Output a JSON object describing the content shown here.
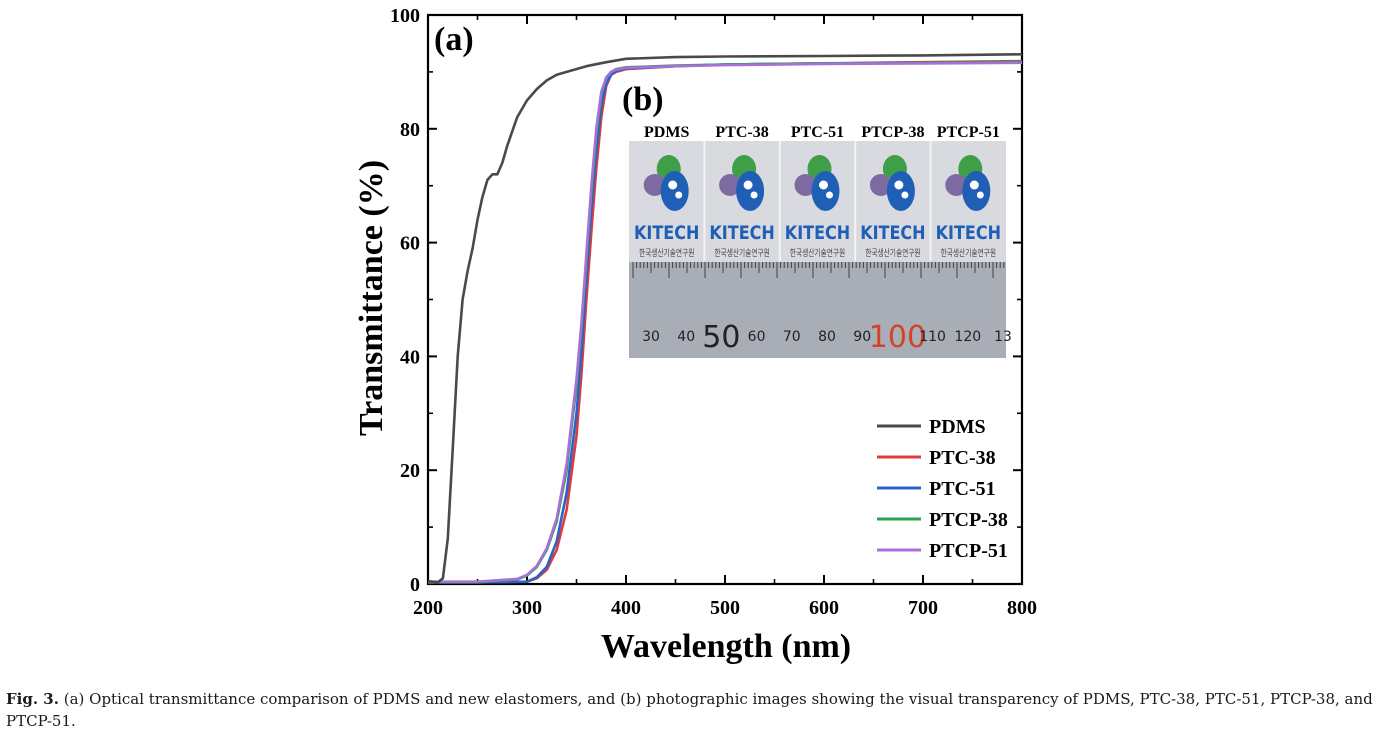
{
  "chart_data": {
    "type": "line",
    "panel_a_label": "(a)",
    "panel_b_label": "(b)",
    "xlabel": "Wavelength (nm)",
    "ylabel": "Transmittance (%)",
    "xlim": [
      200,
      800
    ],
    "ylim": [
      0,
      100
    ],
    "xticks": [
      200,
      300,
      400,
      500,
      600,
      700,
      800
    ],
    "yticks": [
      0,
      20,
      40,
      60,
      80,
      100
    ],
    "grid": false,
    "legend_position": "bottom-right",
    "series": [
      {
        "name": "PDMS",
        "color": "#4a4a4a",
        "points": [
          [
            200,
            0.5
          ],
          [
            210,
            0.3
          ],
          [
            215,
            1
          ],
          [
            220,
            8
          ],
          [
            225,
            24
          ],
          [
            230,
            40
          ],
          [
            235,
            50
          ],
          [
            240,
            55
          ],
          [
            245,
            59
          ],
          [
            250,
            64
          ],
          [
            255,
            68
          ],
          [
            260,
            71
          ],
          [
            265,
            72
          ],
          [
            270,
            72
          ],
          [
            275,
            74
          ],
          [
            280,
            77
          ],
          [
            290,
            82
          ],
          [
            300,
            85
          ],
          [
            310,
            87
          ],
          [
            320,
            88.5
          ],
          [
            330,
            89.5
          ],
          [
            340,
            90
          ],
          [
            360,
            91
          ],
          [
            380,
            91.7
          ],
          [
            400,
            92.3
          ],
          [
            450,
            92.6
          ],
          [
            500,
            92.7
          ],
          [
            600,
            92.8
          ],
          [
            700,
            92.9
          ],
          [
            800,
            93.1
          ]
        ]
      },
      {
        "name": "PTC-38",
        "color": "#e03b3b",
        "points": [
          [
            200,
            0.3
          ],
          [
            250,
            0.3
          ],
          [
            300,
            0.4
          ],
          [
            310,
            1
          ],
          [
            320,
            2.5
          ],
          [
            330,
            6
          ],
          [
            340,
            13
          ],
          [
            350,
            26
          ],
          [
            355,
            37
          ],
          [
            360,
            50
          ],
          [
            365,
            62
          ],
          [
            370,
            73
          ],
          [
            375,
            82
          ],
          [
            380,
            87.5
          ],
          [
            385,
            89.5
          ],
          [
            390,
            90
          ],
          [
            400,
            90.5
          ],
          [
            450,
            91
          ],
          [
            500,
            91.3
          ],
          [
            600,
            91.5
          ],
          [
            700,
            91.7
          ],
          [
            800,
            91.9
          ]
        ]
      },
      {
        "name": "PTC-51",
        "color": "#2a62c9",
        "points": [
          [
            200,
            0.3
          ],
          [
            250,
            0.3
          ],
          [
            300,
            0.4
          ],
          [
            310,
            1.2
          ],
          [
            320,
            3
          ],
          [
            330,
            7.5
          ],
          [
            340,
            16
          ],
          [
            350,
            30
          ],
          [
            355,
            41
          ],
          [
            360,
            54
          ],
          [
            365,
            66
          ],
          [
            370,
            76
          ],
          [
            375,
            84
          ],
          [
            380,
            88
          ],
          [
            385,
            89.5
          ],
          [
            390,
            90.2
          ],
          [
            400,
            90.6
          ],
          [
            450,
            91
          ],
          [
            500,
            91.3
          ],
          [
            600,
            91.5
          ],
          [
            700,
            91.6
          ],
          [
            800,
            91.8
          ]
        ]
      },
      {
        "name": "PTCP-38",
        "color": "#2f9e4f",
        "points": [
          [
            200,
            0.3
          ],
          [
            250,
            0.3
          ],
          [
            290,
            0.8
          ],
          [
            300,
            1.5
          ],
          [
            310,
            3
          ],
          [
            320,
            6
          ],
          [
            330,
            11
          ],
          [
            340,
            20
          ],
          [
            350,
            35
          ],
          [
            355,
            45
          ],
          [
            360,
            57
          ],
          [
            365,
            69
          ],
          [
            370,
            79
          ],
          [
            375,
            86
          ],
          [
            380,
            89
          ],
          [
            385,
            90
          ],
          [
            390,
            90.5
          ],
          [
            400,
            90.8
          ],
          [
            450,
            91.1
          ],
          [
            500,
            91.3
          ],
          [
            600,
            91.5
          ],
          [
            700,
            91.6
          ],
          [
            800,
            91.8
          ]
        ]
      },
      {
        "name": "PTCP-51",
        "color": "#a86fd8",
        "points": [
          [
            200,
            0.4
          ],
          [
            250,
            0.4
          ],
          [
            290,
            0.9
          ],
          [
            300,
            1.6
          ],
          [
            310,
            3.2
          ],
          [
            320,
            6.3
          ],
          [
            330,
            11.5
          ],
          [
            340,
            21
          ],
          [
            350,
            36
          ],
          [
            355,
            46
          ],
          [
            360,
            58
          ],
          [
            365,
            70
          ],
          [
            370,
            80
          ],
          [
            375,
            86.5
          ],
          [
            380,
            89
          ],
          [
            385,
            90
          ],
          [
            390,
            90.4
          ],
          [
            400,
            90.7
          ],
          [
            450,
            91
          ],
          [
            500,
            91.2
          ],
          [
            600,
            91.4
          ],
          [
            700,
            91.5
          ],
          [
            800,
            91.6
          ]
        ]
      }
    ],
    "inset": {
      "sample_labels": [
        "PDMS",
        "PTC-38",
        "PTC-51",
        "PTCP-38",
        "PTCP-51"
      ],
      "logo_text": "KITECH",
      "logo_subtext": "한국생산기술연구원",
      "ruler_numbers": [
        "30",
        "40",
        "50",
        "60",
        "70",
        "80",
        "90",
        "100",
        "110",
        "120",
        "13"
      ]
    }
  },
  "caption": {
    "label": "Fig. 3.",
    "text": "(a) Optical transmittance comparison of PDMS and new elastomers, and (b) photographic images showing the visual transparency of PDMS, PTC-38, PTC-51, PTCP-38, and PTCP-51."
  },
  "colors": {
    "axis": "#000000",
    "photo_background": "#d9dadf",
    "ruler_background": "#a8adb6",
    "logo_green": "#3e9f48",
    "logo_purple": "#7e6aa3",
    "logo_blue": "#1f5fb5",
    "ruler_red": "#d0452a"
  }
}
